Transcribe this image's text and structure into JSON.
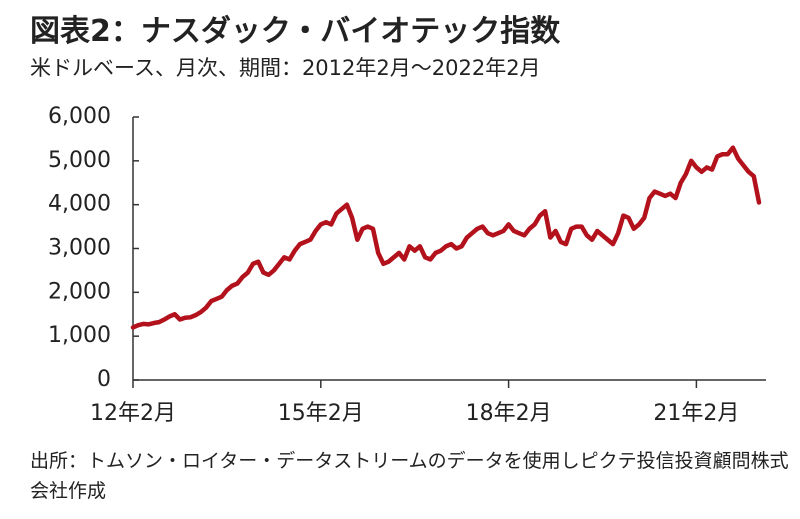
{
  "chart_data": {
    "type": "line",
    "title": "図表2：ナスダック・バイオテック指数",
    "subtitle": "米ドルベース、月次、期間：2012年2月～2022年2月",
    "source": "出所：トムソン・ロイター・データストリームのデータを使用しピクテ投信投資顧問株式会社作成",
    "categories": [
      "12年2月",
      null,
      null,
      null,
      null,
      null,
      null,
      null,
      null,
      null,
      null,
      null,
      null,
      null,
      null,
      null,
      null,
      null,
      null,
      null,
      null,
      null,
      null,
      null,
      null,
      null,
      null,
      null,
      null,
      null,
      null,
      null,
      null,
      null,
      null,
      null,
      "15年2月",
      null,
      null,
      null,
      null,
      null,
      null,
      null,
      null,
      null,
      null,
      null,
      null,
      null,
      null,
      null,
      null,
      null,
      null,
      null,
      null,
      null,
      null,
      null,
      null,
      null,
      null,
      null,
      null,
      null,
      null,
      null,
      null,
      null,
      null,
      null,
      "18年2月",
      null,
      null,
      null,
      null,
      null,
      null,
      null,
      null,
      null,
      null,
      null,
      null,
      null,
      null,
      null,
      null,
      null,
      null,
      null,
      null,
      null,
      null,
      null,
      null,
      null,
      null,
      null,
      null,
      null,
      null,
      null,
      null,
      null,
      null,
      null,
      "21年2月",
      null,
      null,
      null,
      null,
      null,
      null,
      null,
      null,
      null,
      null,
      null,
      null
    ],
    "series": [
      {
        "name": "ナスダック・バイオテック指数",
        "color": "#b3121c",
        "values": [
          1200,
          1250,
          1280,
          1270,
          1300,
          1320,
          1380,
          1450,
          1500,
          1380,
          1420,
          1430,
          1480,
          1550,
          1650,
          1800,
          1850,
          1900,
          2050,
          2150,
          2200,
          2350,
          2450,
          2650,
          2700,
          2450,
          2400,
          2500,
          2650,
          2800,
          2750,
          2950,
          3100,
          3150,
          3200,
          3400,
          3550,
          3600,
          3550,
          3800,
          3900,
          4000,
          3700,
          3200,
          3450,
          3500,
          3450,
          2900,
          2650,
          2700,
          2800,
          2900,
          2750,
          3050,
          2950,
          3050,
          2800,
          2750,
          2900,
          2950,
          3050,
          3100,
          3000,
          3050,
          3250,
          3350,
          3450,
          3500,
          3350,
          3300,
          3350,
          3400,
          3550,
          3400,
          3350,
          3300,
          3450,
          3550,
          3750,
          3850,
          3250,
          3400,
          3150,
          3100,
          3450,
          3500,
          3500,
          3300,
          3200,
          3400,
          3300,
          3200,
          3100,
          3350,
          3750,
          3700,
          3450,
          3550,
          3700,
          4150,
          4300,
          4250,
          4200,
          4250,
          4150,
          4500,
          4700,
          5000,
          4850,
          4750,
          4850,
          4800,
          5100,
          5150,
          5150,
          5300,
          5050,
          4900,
          4750,
          4650,
          4050
        ]
      }
    ],
    "ylim": [
      0,
      6000
    ],
    "yticks": [
      0,
      {
        "value": 1000,
        "label": "1,000"
      },
      {
        "value": 2000,
        "label": "2,000"
      },
      {
        "value": 3000,
        "label": "3,000"
      },
      {
        "value": 4000,
        "label": "4,000"
      },
      {
        "value": 5000,
        "label": "5,000"
      },
      {
        "value": 6000,
        "label": "6,000"
      }
    ],
    "grid": false
  }
}
